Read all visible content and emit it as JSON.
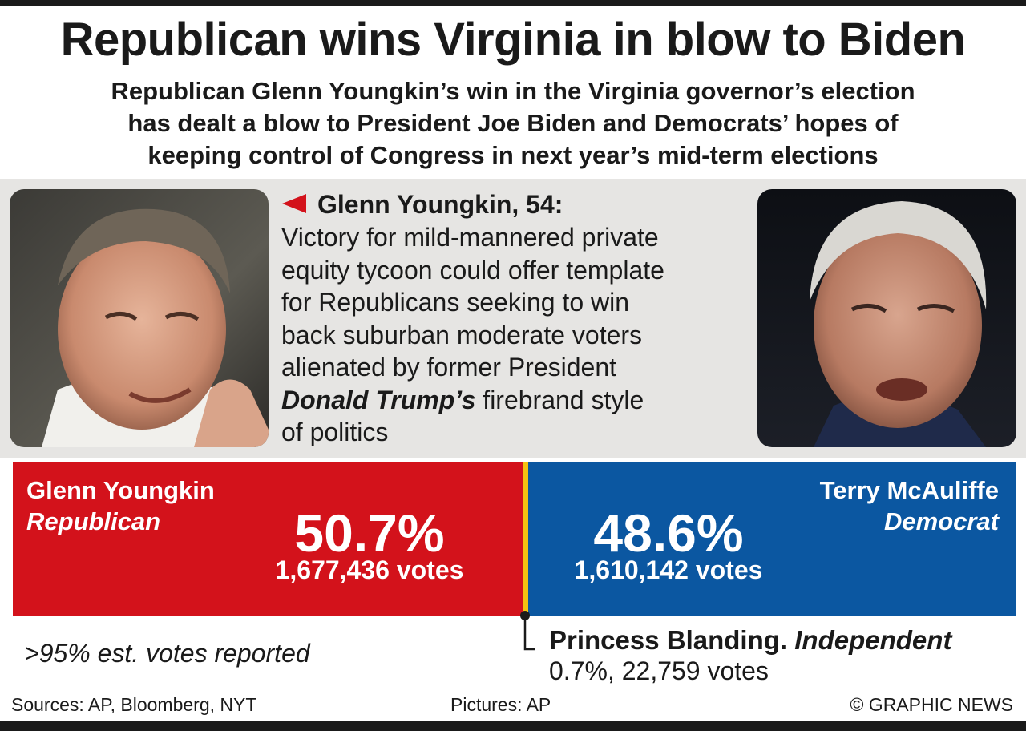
{
  "headline": "Republican wins Virginia in blow to Biden",
  "standfirst": [
    "Republican Glenn Youngkin’s win in the Virginia governor’s election",
    "has dealt a blow to President Joe Biden and Democrats’ hopes of",
    "keeping control of Congress in next year’s mid-term elections"
  ],
  "profile": {
    "heading": "Glenn Youngkin, 54:",
    "lines": [
      "Victory for mild-mannered private",
      "equity tycoon could offer template",
      "for Republicans seeking to win",
      "back suburban moderate voters",
      "alienated by former President"
    ],
    "trump_emphasis": "Donald Trump’s",
    "trump_rest": " firebrand style",
    "last_line": "of politics"
  },
  "colors": {
    "republican": "#d3121b",
    "democrat": "#0b57a1",
    "divider": "#f4c212",
    "band": "#e6e5e3"
  },
  "chart_data": {
    "type": "bar",
    "categories": [
      "Glenn Youngkin",
      "Terry McAuliffe"
    ],
    "series": [
      {
        "values": [
          50.7,
          48.6
        ]
      }
    ],
    "candidates": [
      {
        "name": "Glenn Youngkin",
        "party": "Republican",
        "pct_label": "50.7%",
        "pct": 50.7,
        "votes_label": "1,677,436 votes",
        "votes": 1677436
      },
      {
        "name": "Terry McAuliffe",
        "party": "Democrat",
        "pct_label": "48.6%",
        "pct": 48.6,
        "votes_label": "1,610,142 votes",
        "votes": 1610142
      }
    ],
    "third_party": {
      "name": "Princess Blanding.",
      "party": "Independent",
      "detail": "0.7%, 22,759 votes",
      "pct": 0.7,
      "votes": 22759
    },
    "note": ">95% est. votes reported"
  },
  "credits": {
    "sources": "Sources: AP, Bloomberg, NYT",
    "pictures": "Pictures: AP",
    "copyright": "© GRAPHIC NEWS"
  }
}
